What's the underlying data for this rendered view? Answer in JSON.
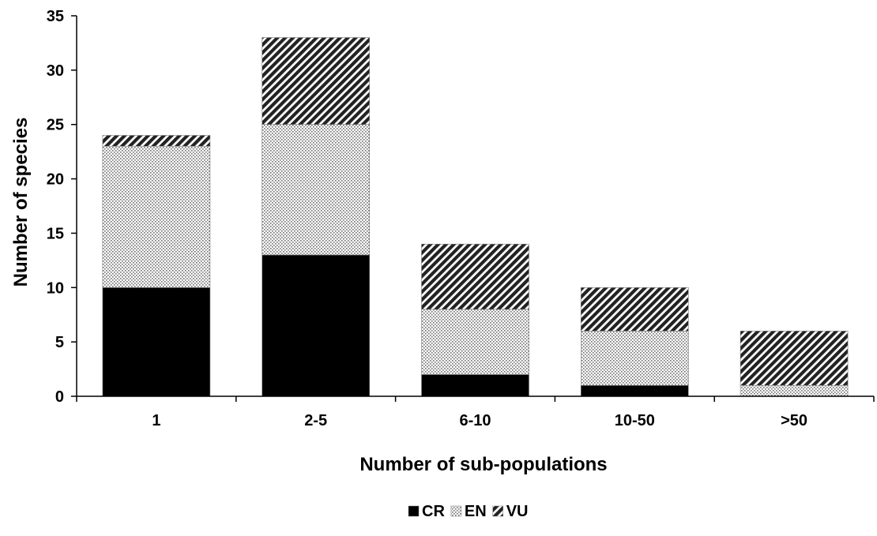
{
  "chart_data": {
    "type": "bar",
    "stacked": true,
    "title": "",
    "xlabel": "Number of sub-populations",
    "ylabel": "Number of species",
    "categories": [
      "1",
      "2-5",
      "6-10",
      "10-50",
      ">50"
    ],
    "series": [
      {
        "name": "CR",
        "values": [
          10,
          13,
          2,
          1,
          0
        ],
        "color": "#000000",
        "pattern": "solid"
      },
      {
        "name": "EN",
        "values": [
          13,
          12,
          6,
          5,
          1
        ],
        "color": "#dcdcdc",
        "pattern": "dots"
      },
      {
        "name": "VU",
        "values": [
          1,
          8,
          6,
          4,
          5
        ],
        "color": "#3a3a3a",
        "pattern": "diagonal-hatch"
      }
    ],
    "ylim": [
      0,
      35
    ],
    "yticks": [
      "0",
      "5",
      "10",
      "15",
      "20",
      "25",
      "30",
      "35"
    ],
    "grid": false,
    "legend": "bottom-center"
  }
}
